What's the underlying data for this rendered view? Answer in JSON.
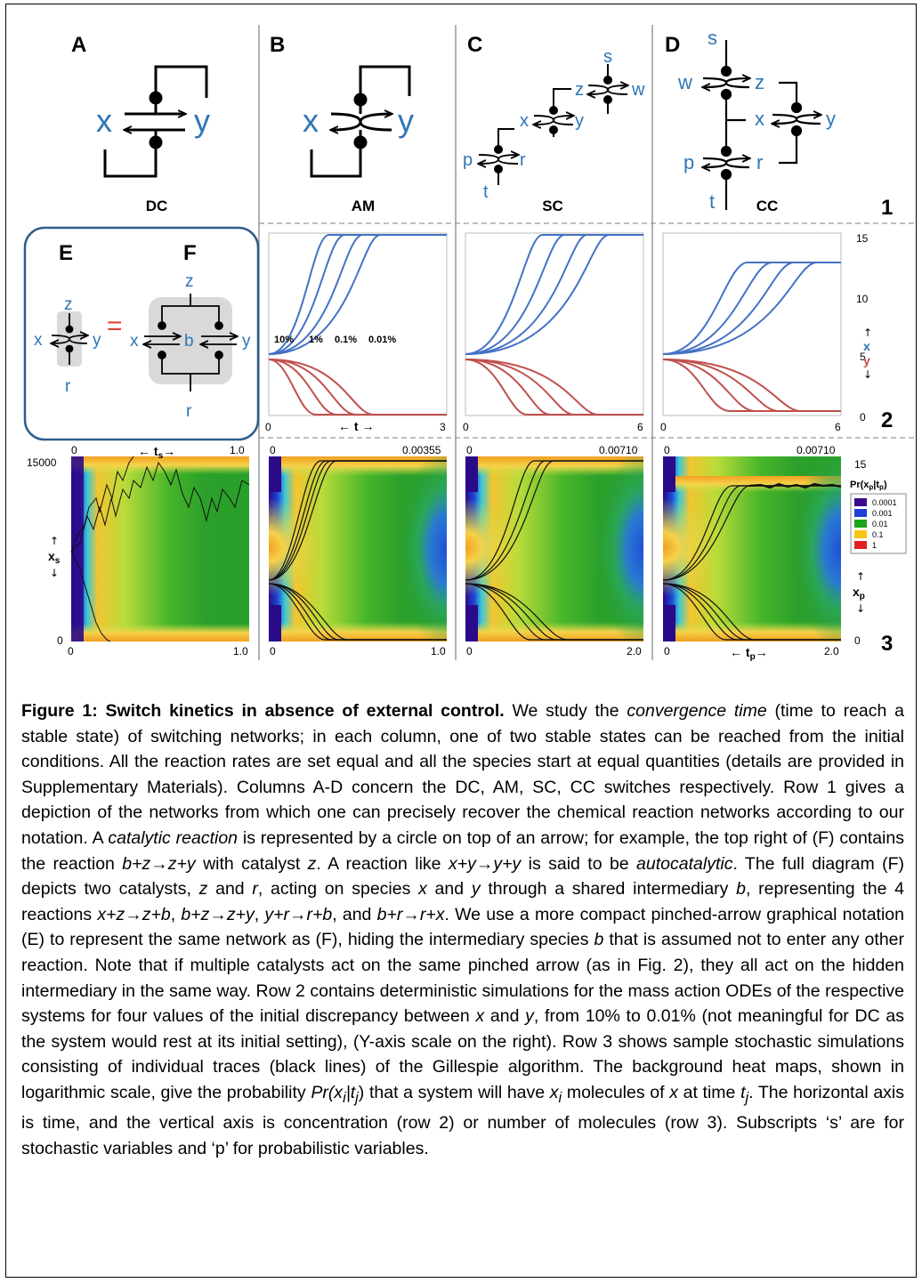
{
  "panel_letters": {
    "A": "A",
    "B": "B",
    "C": "C",
    "D": "D",
    "E": "E",
    "F": "F"
  },
  "network_names": {
    "A": "DC",
    "B": "AM",
    "C": "SC",
    "D": "CC"
  },
  "row_numbers": [
    "1",
    "2",
    "3"
  ],
  "species": {
    "x": "x",
    "y": "y",
    "z": "z",
    "w": "w",
    "p": "p",
    "r": "r",
    "t": "t",
    "s": "s",
    "b": "b"
  },
  "equals_sign": "=",
  "row2": {
    "discrepancy_labels": [
      "10%",
      "1%",
      "0.1%",
      "0.01%"
    ],
    "time_label": "← t →",
    "x_ticks": [
      {
        "left": "0",
        "right": "3"
      },
      {
        "left": "0",
        "right": "6"
      },
      {
        "left": "0",
        "right": "6"
      }
    ],
    "y_ticks": [
      "15",
      "10",
      "5",
      "0"
    ],
    "y_axis": {
      "up": "↑",
      "x": "x",
      "y": "y",
      "down": "↓"
    }
  },
  "row3": {
    "top_ticks": [
      {
        "left": "0",
        "right": "1.0"
      },
      {
        "left": "0",
        "right": "0.00355"
      },
      {
        "left": "0",
        "right": "0.00710"
      },
      {
        "left": "0",
        "right": "0.00710"
      }
    ],
    "bottom_ticks": [
      {
        "left": "0",
        "right": "1.0"
      },
      {
        "left": "0",
        "right": "1.0"
      },
      {
        "left": "0",
        "right": "2.0"
      },
      {
        "left": "0",
        "right": "2.0"
      }
    ],
    "ts_label": "← t",
    "ts_sub": "s",
    "ts_arrow": "→",
    "tp_label": "← t",
    "tp_sub": "p",
    "tp_arrow": "→",
    "left_y": {
      "top": "15000",
      "bottom": "0",
      "up": "↑",
      "var": "x",
      "sub": "s",
      "down": "↓"
    },
    "right_y": {
      "top": "15",
      "bottom": "0",
      "up": "↑",
      "var": "x",
      "sub": "p",
      "down": "↓"
    },
    "legend_title": "Pr(x",
    "legend_title_sub1": "p",
    "legend_title_mid": "|t",
    "legend_title_sub2": "p",
    "legend_title_end": ")",
    "legend": [
      {
        "label": "0.0001",
        "color": "#3a0a8c"
      },
      {
        "label": "0.001",
        "color": "#1d3fd8"
      },
      {
        "label": "0.01",
        "color": "#1aa51a"
      },
      {
        "label": "0.1",
        "color": "#f5c518"
      },
      {
        "label": "1",
        "color": "#e02020"
      }
    ]
  },
  "colors": {
    "species": "#2e75b6",
    "x_curve": "#4472c4",
    "y_curve": "#c0504d",
    "dashed": "#999999"
  },
  "caption": {
    "title": "Figure 1: Switch kinetics in absence of external control.",
    "p1": " We study the ",
    "i1": "convergence time",
    "p2": " (time to reach a stable state) of switching networks; in each column, one of two stable states can be reached from the initial conditions. All the reaction rates are set equal and all the species start at equal quantities (details are provided in Supplementary Materials). Columns A-D concern the DC, AM, SC, CC switches respectively. Row 1 gives a depiction of the networks from which one can precisely recover the chemical reaction networks according to our notation. A ",
    "i2": "catalytic reaction",
    "p3": " is represented by a circle on top of an arrow; for example, the top right of (F) contains the reaction ",
    "i3": "b+z→z+y",
    "p4": " with catalyst ",
    "i4": "z",
    "p5": ". A reaction like ",
    "i5": "x+y→y+y",
    "p6": " is said to be ",
    "i6": "autocatalytic",
    "p7": ". The full diagram (F) depicts two catalysts, ",
    "i7": "z",
    "p8": " and ",
    "i8": "r",
    "p9": ", acting on species ",
    "i9": "x",
    "p10": " and ",
    "i10": "y",
    "p11": " through a shared intermediary ",
    "i11": "b",
    "p12": ", representing the 4 reactions ",
    "i12": "x+z→z+b",
    "p13": ", ",
    "i13": "b+z→z+y",
    "p14": ", ",
    "i14": "y+r→r+b",
    "p15": ", and ",
    "i15": "b+r→r+x",
    "p16": ". We use a more compact pinched-arrow graphical notation (E) to represent the same network as (F), hiding the intermediary species ",
    "i16": "b",
    "p17": " that is assumed not to enter any other reaction. Note that if multiple catalysts act on the same pinched arrow (as in Fig. 2), they all act on the hidden intermediary in the same way. Row 2 contains deterministic simulations for the mass action ODEs of the respective systems for four values of the initial discrepancy between ",
    "i17": "x",
    "p18": " and ",
    "i18": "y",
    "p19": ", from 10% to 0.01% (not meaningful for DC as the system would rest at its initial setting), (Y-axis scale on the right). Row 3 shows sample stochastic simulations consisting of individual traces (black lines) of the Gillespie algorithm. The background heat maps, shown in logarithmic scale, give the probability ",
    "i19": "Pr(x",
    "s1": "i",
    "i20": "|t",
    "s2": "j",
    "p20": ") that a system will have ",
    "i21": "x",
    "s3": "i",
    "p21": " molecules of ",
    "i22": "x",
    "p22": " at time ",
    "i23": "t",
    "s4": "j",
    "p23": ". The horizontal axis is time, and the vertical axis is concentration (row 2) or number of molecules (row 3). Subscripts ‘s’ are for stochastic variables and ‘p’ for probabilistic variables."
  }
}
